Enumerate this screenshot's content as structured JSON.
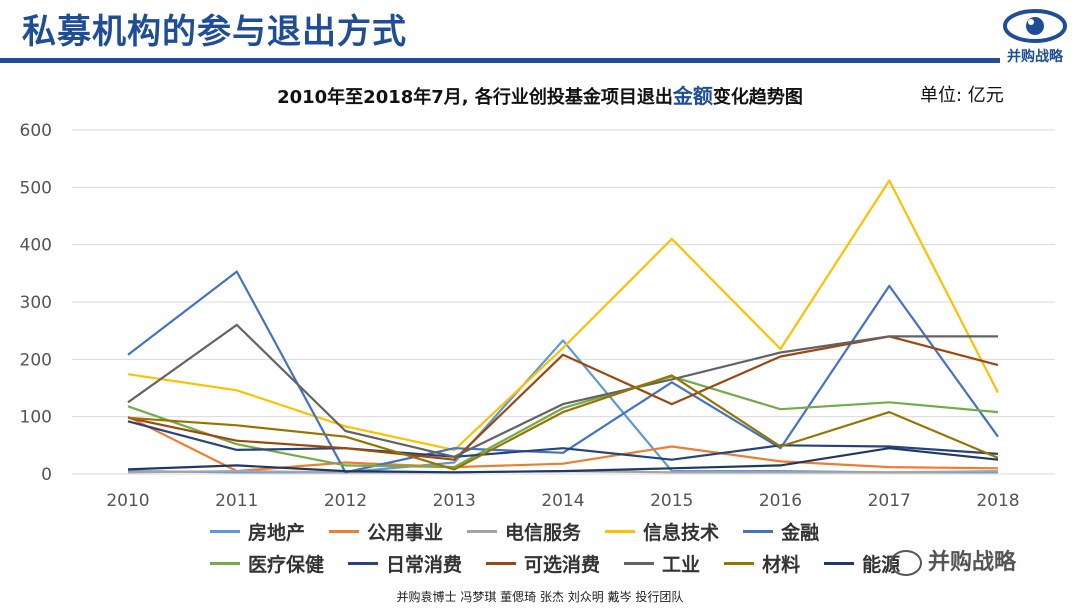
{
  "header": {
    "title": "私募机构的参与退出方式",
    "logo_text": "并购战略"
  },
  "chart_header": {
    "title_pre": "2010年至2018年7月, 各行业创投基金项目退出",
    "title_highlight": "金额",
    "title_post": "变化趋势图",
    "unit": "单位: 亿元"
  },
  "watermark": "并购战略",
  "footer": "并购袁博士 冯梦琪 董偲琦 张杰 刘众明 戴岑 投行团队",
  "chart_data": {
    "type": "line",
    "x": [
      "2010",
      "2011",
      "2012",
      "2013",
      "2014",
      "2015",
      "2016",
      "2017",
      "2018"
    ],
    "ylim": [
      0,
      600
    ],
    "yticks": [
      0,
      100,
      200,
      300,
      400,
      500,
      600
    ],
    "grid": true,
    "legend_position": "bottom",
    "series": [
      {
        "name": "房地产",
        "color": "#5b9bd5",
        "values": [
          5,
          3,
          3,
          20,
          233,
          5,
          5,
          3,
          3
        ]
      },
      {
        "name": "公用事业",
        "color": "#ed7d31",
        "values": [
          100,
          5,
          20,
          12,
          18,
          48,
          22,
          12,
          10
        ]
      },
      {
        "name": "电信服务",
        "color": "#a5a5a5",
        "values": [
          3,
          5,
          3,
          3,
          5,
          3,
          3,
          3,
          5
        ]
      },
      {
        "name": "信息技术",
        "color": "#ffc000",
        "values": [
          174,
          146,
          83,
          42,
          220,
          410,
          218,
          512,
          142
        ]
      },
      {
        "name": "金融",
        "color": "#4472c4",
        "values": [
          208,
          353,
          3,
          45,
          37,
          160,
          45,
          328,
          65
        ]
      },
      {
        "name": "医疗保健",
        "color": "#70ad47",
        "values": [
          118,
          52,
          15,
          12,
          115,
          170,
          113,
          125,
          108
        ]
      },
      {
        "name": "日常消费",
        "color": "#264478",
        "values": [
          92,
          42,
          45,
          30,
          45,
          25,
          50,
          48,
          35
        ]
      },
      {
        "name": "可选消费",
        "color": "#9e480e",
        "values": [
          98,
          58,
          45,
          25,
          208,
          122,
          205,
          240,
          190
        ]
      },
      {
        "name": "工业",
        "color": "#636363",
        "values": [
          125,
          260,
          75,
          30,
          122,
          165,
          212,
          240,
          240
        ]
      },
      {
        "name": "材料",
        "color": "#997300",
        "values": [
          98,
          85,
          65,
          8,
          108,
          172,
          48,
          108,
          28
        ]
      },
      {
        "name": "能源",
        "color": "#1f3864",
        "values": [
          8,
          15,
          5,
          3,
          5,
          10,
          15,
          45,
          25
        ]
      }
    ]
  }
}
